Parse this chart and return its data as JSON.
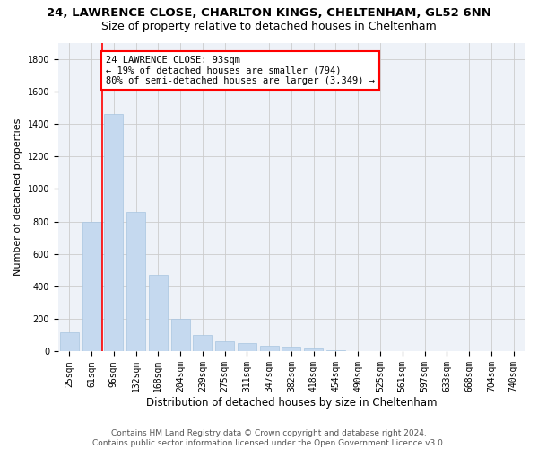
{
  "title1": "24, LAWRENCE CLOSE, CHARLTON KINGS, CHELTENHAM, GL52 6NN",
  "title2": "Size of property relative to detached houses in Cheltenham",
  "xlabel": "Distribution of detached houses by size in Cheltenham",
  "ylabel": "Number of detached properties",
  "categories": [
    "25sqm",
    "61sqm",
    "96sqm",
    "132sqm",
    "168sqm",
    "204sqm",
    "239sqm",
    "275sqm",
    "311sqm",
    "347sqm",
    "382sqm",
    "418sqm",
    "454sqm",
    "490sqm",
    "525sqm",
    "561sqm",
    "597sqm",
    "633sqm",
    "668sqm",
    "704sqm",
    "740sqm"
  ],
  "values": [
    120,
    800,
    1460,
    860,
    470,
    200,
    100,
    65,
    50,
    35,
    30,
    20,
    10,
    5,
    3,
    2,
    1,
    1,
    1,
    5,
    1
  ],
  "bar_color": "#c5d9ef",
  "bar_edge_color": "#a8c4e0",
  "vline_x_index": 2,
  "vline_color": "red",
  "annotation_text": "24 LAWRENCE CLOSE: 93sqm\n← 19% of detached houses are smaller (794)\n80% of semi-detached houses are larger (3,349) →",
  "annotation_box_color": "white",
  "annotation_box_edge_color": "red",
  "ylim": [
    0,
    1900
  ],
  "yticks": [
    0,
    200,
    400,
    600,
    800,
    1000,
    1200,
    1400,
    1600,
    1800
  ],
  "grid_color": "#cccccc",
  "background_color": "#eef2f8",
  "footnote": "Contains HM Land Registry data © Crown copyright and database right 2024.\nContains public sector information licensed under the Open Government Licence v3.0.",
  "title1_fontsize": 9.5,
  "title2_fontsize": 9,
  "xlabel_fontsize": 8.5,
  "ylabel_fontsize": 8,
  "tick_fontsize": 7,
  "annotation_fontsize": 7.5,
  "footnote_fontsize": 6.5
}
